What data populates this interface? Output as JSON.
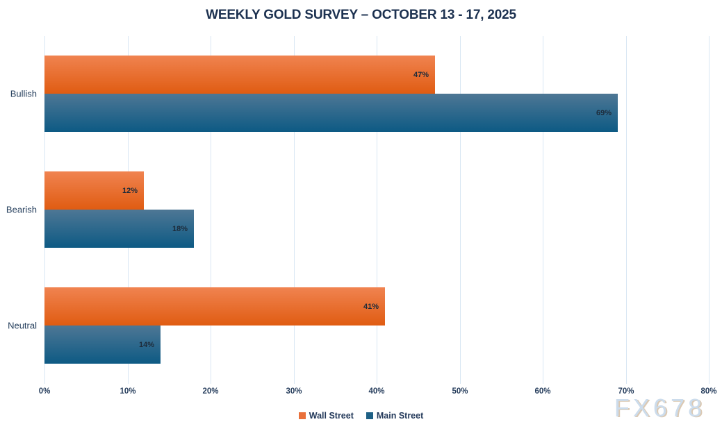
{
  "watermark": "FX678",
  "colors": {
    "title_text": "#1c3150",
    "category_text": "#27405e",
    "tick_text": "#263d5c",
    "bar_label_text": "#1d2b3a",
    "legend_text": "#23395a",
    "gridline": "#d8e6f3",
    "wall_street_top": "#f08350",
    "wall_street_bottom": "#e05c12",
    "main_street_top": "#4e7795",
    "main_street_bottom": "#0d5a84",
    "legend_wall_swatch": "#e9703b",
    "legend_main_swatch": "#1e6085",
    "watermark_text": "#ccdcec",
    "watermark_shadow": "#dbc9b3"
  },
  "chart_data": {
    "type": "bar",
    "orientation": "horizontal",
    "title": "WEEKLY GOLD SURVEY – OCTOBER 13 - 17, 2025",
    "categories": [
      "Bullish",
      "Bearish",
      "Neutral"
    ],
    "series": [
      {
        "name": "Wall Street",
        "values": [
          47,
          12,
          41
        ],
        "labels": [
          "47%",
          "12%",
          "41%"
        ]
      },
      {
        "name": "Main Street",
        "values": [
          69,
          18,
          14
        ],
        "labels": [
          "69%",
          "18%",
          "14%"
        ]
      }
    ],
    "xlim": [
      0,
      80
    ],
    "x_ticks": [
      "0%",
      "10%",
      "20%",
      "30%",
      "40%",
      "50%",
      "60%",
      "70%",
      "80%"
    ],
    "grid": "vertical",
    "legend_position": "bottom"
  }
}
